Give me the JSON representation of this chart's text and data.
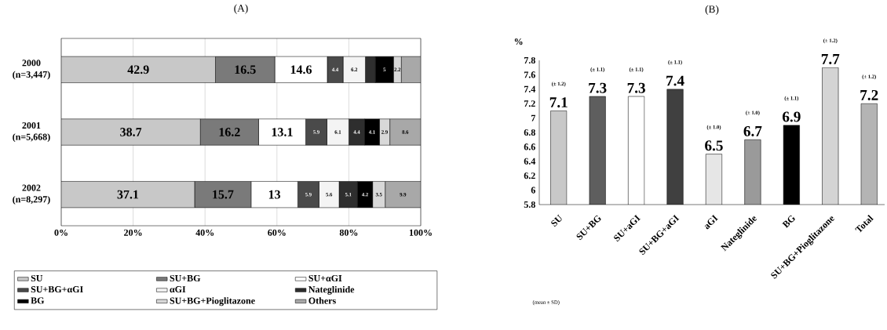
{
  "chart_data": [
    {
      "type": "bar",
      "title": "(A)",
      "orientation": "horizontal",
      "stacked": true,
      "grid": "x",
      "legend": "bottom",
      "categories": [
        "2000 (n=3,447)",
        "2001 (n=5,668)",
        "2002 (n=8,297)"
      ],
      "xlim": [
        0,
        100
      ],
      "xticks": [
        {
          "value": 0,
          "label": "0%"
        },
        {
          "value": 20,
          "label": "20%"
        },
        {
          "value": 40,
          "label": "40%"
        },
        {
          "value": 60,
          "label": "60%"
        },
        {
          "value": 80,
          "label": "80%"
        },
        {
          "value": 100,
          "label": "100%"
        }
      ],
      "series": [
        {
          "name": "SU",
          "color": "#c8c8c8",
          "values": [
            42.9,
            38.7,
            37.1
          ],
          "value_labels": [
            "42.9",
            "38.7",
            "37.1"
          ]
        },
        {
          "name": "SU+BG",
          "color": "#7a7a7a",
          "values": [
            16.5,
            16.2,
            15.7
          ],
          "value_labels": [
            "16.5",
            "16.2",
            "15.7"
          ]
        },
        {
          "name": "SU+αGI",
          "color": "#ffffff",
          "values": [
            14.6,
            13.1,
            13
          ],
          "value_labels": [
            "14.6",
            "13.1",
            "13"
          ]
        },
        {
          "name": "SU+BG+αGI",
          "color": "#4a4a4a",
          "values": [
            4.4,
            5.9,
            5.9
          ],
          "value_labels": [
            "4.4",
            "5.9",
            "5.9"
          ]
        },
        {
          "name": "αGI",
          "color": "#f4f4f4",
          "values": [
            6.2,
            6.1,
            5.6
          ],
          "value_labels": [
            "6.2",
            "6.1",
            "5.6"
          ]
        },
        {
          "name": "Nateglinide",
          "color": "#2e2e2e",
          "values": [
            2.8,
            4.4,
            5.1
          ],
          "value_labels": [
            null,
            "4.4",
            "5.1"
          ]
        },
        {
          "name": "BG",
          "color": "#000000",
          "values": [
            5,
            4.1,
            4.2
          ],
          "value_labels": [
            "5",
            "4.1",
            "4.2"
          ]
        },
        {
          "name": "SU+BG+Pioglitazone",
          "color": "#d8d8d8",
          "values": [
            2.2,
            2.9,
            3.5
          ],
          "value_labels": [
            "2.2",
            "2.9",
            "3.5"
          ]
        },
        {
          "name": "Others",
          "color": "#a8a8a8",
          "values": [
            5.4,
            8.6,
            9.9
          ],
          "value_labels": [
            null,
            "8.6",
            "9.9"
          ]
        }
      ]
    },
    {
      "type": "bar",
      "title": "(B)",
      "ylabel": "%",
      "data_labels": true,
      "categories": [
        "SU",
        "SU+BG",
        "SU+aGI",
        "SU+BG+aGI",
        "aGI",
        "Nateglinide",
        "BG",
        "SU+BG+Pioglitazone",
        "Total"
      ],
      "values": [
        7.1,
        7.3,
        7.3,
        7.4,
        6.5,
        6.7,
        6.9,
        7.7,
        7.2
      ],
      "colors": [
        "#c8c8c8",
        "#5e5e5e",
        "#ffffff",
        "#404040",
        "#e6e6e6",
        "#9a9a9a",
        "#000000",
        "#d4d4d4",
        "#b4b4b4"
      ],
      "ylim": [
        5.8,
        7.8
      ],
      "yticks": [
        5.8,
        6,
        6.2,
        6.4,
        6.6,
        6.8,
        7,
        7.2,
        7.4,
        7.6,
        7.8
      ],
      "annotations": [
        "(± 1.2)",
        "(± 1.1)",
        "(± 1.1)",
        "(± 1.1)",
        "(± 1.0)",
        "(± 1.0)",
        "(± 1.1)",
        "(± 1.2)",
        "(± 1.2)",
        "(mean ± SD)"
      ]
    }
  ]
}
